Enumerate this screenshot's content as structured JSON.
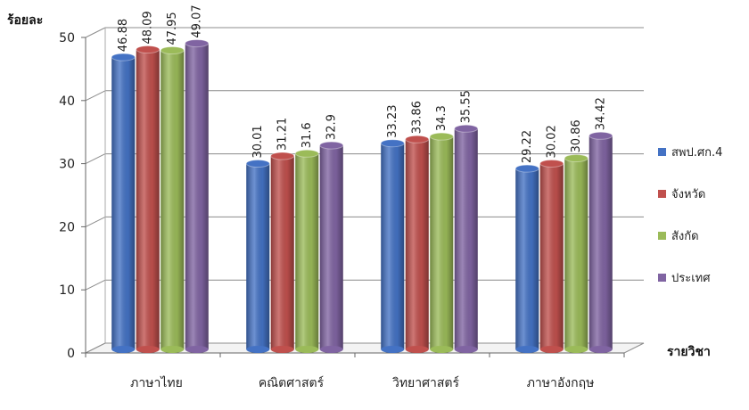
{
  "chart_data": {
    "type": "bar",
    "ylabel": "ร้อยละ",
    "xlabel": "รายวิชา",
    "ylim": [
      0,
      50
    ],
    "yticks": [
      0,
      10,
      20,
      30,
      40,
      50
    ],
    "grid": true,
    "legend_position": "right",
    "categories": [
      "ภาษาไทย",
      "คณิตศาสตร์",
      "วิทยาศาสตร์",
      "ภาษาอังกฤษ"
    ],
    "series": [
      {
        "name": "สพป.ศก.4",
        "color": "#4472C4",
        "values": [
          46.88,
          30.01,
          33.23,
          29.22
        ]
      },
      {
        "name": "จังหวัด",
        "color": "#C0504D",
        "values": [
          48.09,
          31.21,
          33.86,
          30.02
        ]
      },
      {
        "name": "สังกัด",
        "color": "#9BBB59",
        "values": [
          47.95,
          31.6,
          34.3,
          30.86
        ]
      },
      {
        "name": "ประเทศ",
        "color": "#8064A2",
        "values": [
          49.07,
          32.9,
          35.55,
          34.42
        ]
      }
    ]
  }
}
